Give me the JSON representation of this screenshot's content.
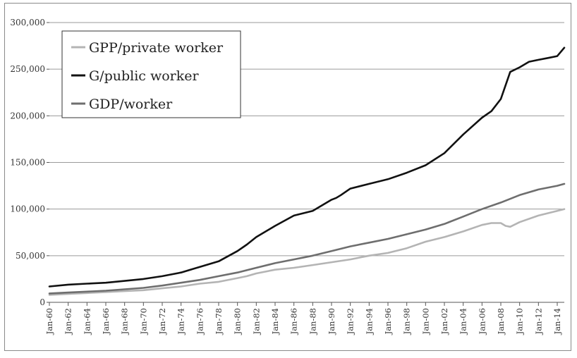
{
  "chart_data": {
    "type": "line",
    "title": "",
    "xlabel": "",
    "ylabel": "",
    "ylim": [
      0,
      300000
    ],
    "y_ticks": [
      "0",
      "50,000",
      "100,000",
      "150,000",
      "200,000",
      "250,000",
      "300,000"
    ],
    "y_tick_values": [
      0,
      50000,
      100000,
      150000,
      200000,
      250000,
      300000
    ],
    "x_tick_labels": [
      "Jan-60",
      "Jan-62",
      "Jan-64",
      "Jan-66",
      "Jan-68",
      "Jan-70",
      "Jan-72",
      "Jan-74",
      "Jan-76",
      "Jan-78",
      "Jan-80",
      "Jan-82",
      "Jan-84",
      "Jan-86",
      "Jan-88",
      "Jan-90",
      "Jan-92",
      "Jan-94",
      "Jan-96",
      "Jan-98",
      "Jan-00",
      "Jan-02",
      "Jan-04",
      "Jan-06",
      "Jan-08",
      "Jan-10",
      "Jan-12",
      "Jan-14"
    ],
    "x_tick_years": [
      1960,
      1962,
      1964,
      1966,
      1968,
      1970,
      1972,
      1974,
      1976,
      1978,
      1980,
      1982,
      1984,
      1986,
      1988,
      1990,
      1992,
      1994,
      1996,
      1998,
      2000,
      2002,
      2004,
      2006,
      2008,
      2010,
      2012,
      2014
    ],
    "xlim": [
      1960,
      2014.75
    ],
    "grid": "horizontal",
    "legend_position": "top-left",
    "series": [
      {
        "name": "GPP/private worker",
        "color": "#b4b4b4",
        "x": [
          1960,
          1962,
          1964,
          1966,
          1968,
          1970,
          1972,
          1974,
          1976,
          1978,
          1980,
          1981,
          1982,
          1984,
          1986,
          1988,
          1990,
          1992,
          1994,
          1996,
          1998,
          2000,
          2002,
          2004,
          2006,
          2007,
          2008,
          2008.5,
          2009,
          2010,
          2012,
          2014,
          2014.75
        ],
        "y": [
          8000,
          9000,
          10000,
          11000,
          12000,
          13000,
          15000,
          17000,
          20000,
          22000,
          26000,
          28000,
          31000,
          35000,
          37000,
          40000,
          43000,
          46000,
          50000,
          53000,
          58000,
          65000,
          70000,
          76000,
          83000,
          85000,
          85000,
          82000,
          81000,
          86000,
          93000,
          98000,
          100000
        ]
      },
      {
        "name": "G/public worker",
        "color": "#111111",
        "x": [
          1960,
          1962,
          1964,
          1966,
          1968,
          1970,
          1972,
          1974,
          1976,
          1978,
          1980,
          1981,
          1982,
          1984,
          1986,
          1988,
          1990,
          1990.5,
          1991,
          1992,
          1994,
          1996,
          1998,
          2000,
          2002,
          2004,
          2006,
          2007,
          2008,
          2009,
          2010,
          2011,
          2012,
          2013,
          2014,
          2014.75
        ],
        "y": [
          17000,
          19000,
          20000,
          21000,
          23000,
          25000,
          28000,
          32000,
          38000,
          44000,
          55000,
          62000,
          70000,
          82000,
          93000,
          98000,
          110000,
          112000,
          115000,
          122000,
          127000,
          132000,
          139000,
          147000,
          160000,
          180000,
          198000,
          205000,
          218000,
          247000,
          252000,
          258000,
          260000,
          262000,
          264000,
          273000
        ]
      },
      {
        "name": "GDP/worker",
        "color": "#6e6e6e",
        "x": [
          1960,
          1962,
          1964,
          1966,
          1968,
          1970,
          1972,
          1974,
          1976,
          1978,
          1980,
          1982,
          1984,
          1986,
          1988,
          1990,
          1992,
          1994,
          1996,
          1998,
          2000,
          2002,
          2004,
          2006,
          2008,
          2010,
          2012,
          2014,
          2014.75
        ],
        "y": [
          9500,
          10500,
          11500,
          12500,
          14000,
          15500,
          18000,
          21000,
          24000,
          28000,
          32000,
          37000,
          42000,
          46000,
          50000,
          55000,
          60000,
          64000,
          68000,
          73000,
          78000,
          84000,
          92000,
          100000,
          107000,
          115000,
          121000,
          125000,
          127000
        ]
      }
    ]
  }
}
